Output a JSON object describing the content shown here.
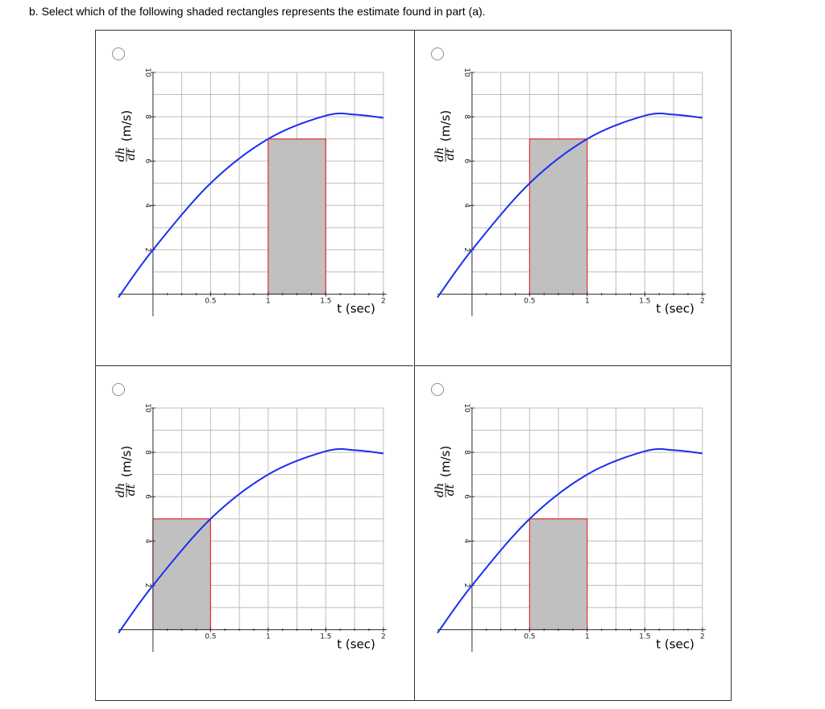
{
  "question": "b. Select which of the following shaded rectangles represents the estimate found in part (a).",
  "options": [
    {
      "id": "option-a",
      "selected": false,
      "rect": {
        "x0": 1.0,
        "x1": 1.5,
        "height": 7
      }
    },
    {
      "id": "option-b",
      "selected": false,
      "rect": {
        "x0": 0.5,
        "x1": 1.0,
        "height": 7
      }
    },
    {
      "id": "option-c",
      "selected": false,
      "rect": {
        "x0": 0.0,
        "x1": 0.5,
        "height": 5
      }
    },
    {
      "id": "option-d",
      "selected": false,
      "rect": {
        "x0": 0.5,
        "x1": 1.0,
        "height": 5
      }
    }
  ],
  "chart_data": {
    "type": "line",
    "xlabel": "t (sec)",
    "ylabel_fraction": {
      "numerator": "dh",
      "denominator": "dt"
    },
    "ylabel_unit": "(m/s)",
    "xlim": [
      -0.3,
      2.05
    ],
    "ylim": [
      -1,
      10
    ],
    "xticks": [
      0.5,
      1,
      1.5,
      2
    ],
    "xtick_labels": [
      "0.5",
      "1",
      "1.5",
      "2"
    ],
    "yticks": [
      2,
      4,
      6,
      8,
      10
    ],
    "ytick_labels": [
      "2",
      "4",
      "6",
      "8",
      "10"
    ],
    "grid": true,
    "curve": {
      "color": "#1a2ff0",
      "x": [
        -0.3,
        0,
        0.5,
        1.0,
        1.5,
        1.75,
        2.0
      ],
      "y": [
        -0.15,
        2,
        5,
        7,
        8.05,
        8.1,
        7.95
      ]
    },
    "rect_fill": "#c0c0c0",
    "rect_stroke": "#e03030"
  }
}
